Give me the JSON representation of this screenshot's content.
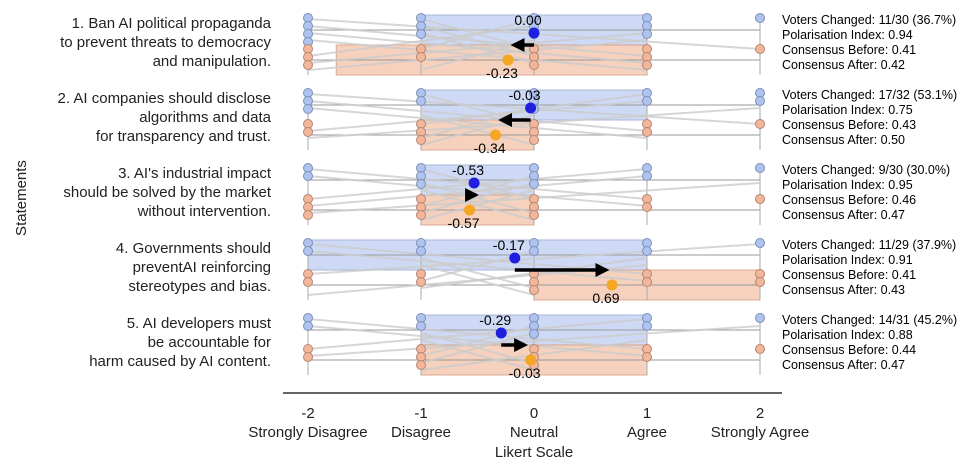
{
  "chart_data": {
    "type": "scatter",
    "xlabel": "Likert Scale",
    "ylabel": "Statements",
    "xlim": [
      -2,
      2
    ],
    "x_ticks": [
      {
        "value": -2,
        "label": "-2",
        "sublabel": "Strongly Disagree"
      },
      {
        "value": -1,
        "label": "-1",
        "sublabel": "Disagree"
      },
      {
        "value": 0,
        "label": "0",
        "sublabel": "Neutral"
      },
      {
        "value": 1,
        "label": "1",
        "sublabel": "Agree"
      },
      {
        "value": 2,
        "label": "2",
        "sublabel": "Strongly Agree"
      }
    ],
    "colors": {
      "before_point": "#1f1fe0",
      "after_point": "#f5a623",
      "before_box": "#c9d7f5",
      "after_box": "#f5cdb8",
      "before_dot": "#aec3ee",
      "after_dot": "#f0b79c",
      "arrow": "#000000",
      "grid_line": "#cccccc"
    },
    "statements": [
      {
        "label_lines": [
          "1. Ban AI political propaganda",
          "to prevent threats to democracy",
          "and manipulation."
        ],
        "mean_before": 0.0,
        "mean_after": -0.23,
        "mean_before_label": "0.00",
        "mean_after_label": "-0.23",
        "before_box": [
          -1,
          1
        ],
        "after_box": [
          -1.75,
          1
        ],
        "before_responses": [
          -2,
          -2,
          -2,
          -2,
          -1,
          -1,
          -1,
          0,
          0,
          0,
          1,
          1,
          1,
          2
        ],
        "after_responses": [
          -2,
          -2,
          -2,
          -1,
          -1,
          0,
          0,
          0,
          1,
          1,
          1,
          2
        ],
        "stats": [
          "Voters Changed: 11/30 (36.7%)",
          "Polarisation Index: 0.94",
          "Consensus Before: 0.41",
          "Consensus After: 0.42"
        ]
      },
      {
        "label_lines": [
          "2. AI companies should disclose",
          "algorithms and data",
          "for transparency and trust."
        ],
        "mean_before": -0.03,
        "mean_after": -0.34,
        "mean_before_label": "-0.03",
        "mean_after_label": "-0.34",
        "before_box": [
          -1,
          1
        ],
        "after_box": [
          -1,
          0
        ],
        "before_responses": [
          -2,
          -2,
          -2,
          -1,
          -1,
          0,
          0,
          0,
          1,
          1,
          2,
          2
        ],
        "after_responses": [
          -2,
          -2,
          -1,
          -1,
          -1,
          0,
          0,
          0,
          1,
          1,
          2
        ],
        "stats": [
          "Voters Changed: 17/32 (53.1%)",
          "Polarisation Index: 0.75",
          "Consensus Before: 0.43",
          "Consensus After: 0.50"
        ]
      },
      {
        "label_lines": [
          "3. AI's industrial impact",
          "should be solved by the market",
          "without intervention."
        ],
        "mean_before": -0.53,
        "mean_after": -0.57,
        "mean_before_label": "-0.53",
        "mean_after_label": "-0.57",
        "before_box": [
          -1,
          0
        ],
        "after_box": [
          -1,
          0
        ],
        "before_responses": [
          -2,
          -2,
          -1,
          -1,
          -1,
          0,
          0,
          0,
          1,
          1,
          2
        ],
        "after_responses": [
          -2,
          -2,
          -2,
          -1,
          -1,
          -1,
          0,
          0,
          0,
          1,
          1,
          2
        ],
        "stats": [
          "Voters Changed: 9/30 (30.0%)",
          "Polarisation Index: 0.95",
          "Consensus Before: 0.46",
          "Consensus After: 0.47"
        ]
      },
      {
        "label_lines": [
          "4. Governments should",
          "preventAI reinforcing",
          "stereotypes and bias."
        ],
        "mean_before": -0.17,
        "mean_after": 0.69,
        "mean_before_label": "-0.17",
        "mean_after_label": "0.69",
        "before_box": [
          -2,
          1
        ],
        "after_box": [
          0,
          2
        ],
        "before_responses": [
          -2,
          -2,
          -1,
          -1,
          0,
          0,
          1,
          1,
          2
        ],
        "after_responses": [
          -2,
          -2,
          -1,
          -1,
          0,
          0,
          0,
          1,
          1,
          2,
          2
        ],
        "stats": [
          "Voters Changed: 11/29 (37.9%)",
          "Polarisation Index: 0.91",
          "Consensus Before: 0.41",
          "Consensus After: 0.43"
        ]
      },
      {
        "label_lines": [
          "5. AI developers must",
          "be accountable for",
          "harm caused by AI content."
        ],
        "mean_before": -0.29,
        "mean_after": -0.03,
        "mean_before_label": "-0.29",
        "mean_after_label": "-0.03",
        "before_box": [
          -1,
          1
        ],
        "after_box": [
          -1,
          1
        ],
        "before_responses": [
          -2,
          -2,
          -1,
          -1,
          0,
          0,
          0,
          1,
          1,
          2
        ],
        "after_responses": [
          -2,
          -2,
          -1,
          -1,
          -1,
          0,
          0,
          0,
          1,
          1,
          2
        ],
        "stats": [
          "Voters Changed: 14/31 (45.2%)",
          "Polarisation Index: 0.88",
          "Consensus Before: 0.44",
          "Consensus After: 0.47"
        ]
      }
    ]
  }
}
